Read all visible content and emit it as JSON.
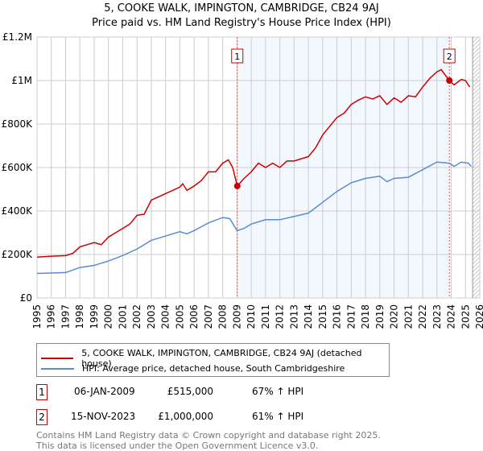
{
  "title": "5, COOKE WALK, IMPINGTON, CAMBRIDGE, CB24 9AJ",
  "subtitle": "Price paid vs. HM Land Registry's House Price Index (HPI)",
  "chart_data": {
    "type": "line",
    "title": "5, COOKE WALK, IMPINGTON, CAMBRIDGE, CB24 9AJ",
    "subtitle": "Price paid vs. HM Land Registry's House Price Index (HPI)",
    "xlim": [
      1995,
      2026
    ],
    "ylim": [
      0,
      1200000
    ],
    "x_ticks": [
      "1995",
      "1996",
      "1997",
      "1998",
      "1999",
      "2000",
      "2001",
      "2002",
      "2003",
      "2004",
      "2005",
      "2006",
      "2007",
      "2008",
      "2009",
      "2010",
      "2011",
      "2012",
      "2013",
      "2014",
      "2015",
      "2016",
      "2017",
      "2018",
      "2019",
      "2020",
      "2021",
      "2022",
      "2023",
      "2024",
      "2025",
      "2026"
    ],
    "y_ticks": [
      {
        "v": 0,
        "label": "£0"
      },
      {
        "v": 200000,
        "label": "£200K"
      },
      {
        "v": 400000,
        "label": "£400K"
      },
      {
        "v": 600000,
        "label": "£600K"
      },
      {
        "v": 800000,
        "label": "£800K"
      },
      {
        "v": 1000000,
        "label": "£1M"
      },
      {
        "v": 1200000,
        "label": "£1.2M"
      }
    ],
    "grid": true,
    "series": [
      {
        "name": "5, COOKE WALK, IMPINGTON, CAMBRIDGE, CB24 9AJ (detached house)",
        "color": "#cc0000",
        "x": [
          1995,
          1996,
          1997,
          1997.5,
          1998,
          1999,
          1999.5,
          2000,
          2001,
          2001.5,
          2002,
          2002.5,
          2003,
          2004,
          2005,
          2005.2,
          2005.5,
          2006,
          2006.5,
          2007,
          2007.5,
          2008,
          2008.4,
          2008.7,
          2009.02,
          2009.5,
          2010,
          2010.5,
          2011,
          2011.5,
          2012,
          2012.5,
          2013,
          2014,
          2014.5,
          2015,
          2015.5,
          2016,
          2016.5,
          2017,
          2017.5,
          2018,
          2018.5,
          2019,
          2019.5,
          2020,
          2020.5,
          2021,
          2021.5,
          2022,
          2022.5,
          2023,
          2023.3,
          2023.87,
          2024.2,
          2024.7,
          2025,
          2025.3
        ],
        "values": [
          188000,
          192000,
          195000,
          205000,
          235000,
          255000,
          245000,
          280000,
          320000,
          340000,
          380000,
          385000,
          450000,
          480000,
          510000,
          525000,
          495000,
          515000,
          540000,
          580000,
          580000,
          620000,
          635000,
          600000,
          515000,
          550000,
          580000,
          620000,
          600000,
          620000,
          600000,
          630000,
          630000,
          650000,
          690000,
          750000,
          790000,
          830000,
          850000,
          890000,
          910000,
          925000,
          915000,
          930000,
          890000,
          920000,
          900000,
          930000,
          925000,
          970000,
          1010000,
          1040000,
          1050000,
          1000000,
          980000,
          1005000,
          1000000,
          970000
        ]
      },
      {
        "name": "HPI: Average price, detached house, South Cambridgeshire",
        "color": "#5b8ccf",
        "x": [
          1995,
          1996,
          1997,
          1998,
          1999,
          2000,
          2001,
          2002,
          2003,
          2004,
          2005,
          2005.5,
          2006,
          2007,
          2008,
          2008.5,
          2009,
          2009.5,
          2010,
          2011,
          2012,
          2013,
          2014,
          2015,
          2016,
          2017,
          2018,
          2019,
          2019.5,
          2020,
          2021,
          2022,
          2023,
          2023.87,
          2024.2,
          2024.7,
          2025.2,
          2025.4
        ],
        "values": [
          113000,
          115000,
          117000,
          140000,
          150000,
          170000,
          195000,
          225000,
          265000,
          285000,
          305000,
          295000,
          310000,
          345000,
          370000,
          365000,
          310000,
          320000,
          340000,
          360000,
          360000,
          375000,
          390000,
          440000,
          490000,
          530000,
          550000,
          560000,
          535000,
          550000,
          555000,
          590000,
          625000,
          620000,
          605000,
          625000,
          620000,
          605000
        ]
      }
    ],
    "shaded_range": [
      2009.02,
      2023.87
    ],
    "forecast_hatch_from": 2025.5,
    "annotations": [
      {
        "label": "1",
        "x": 2009.02,
        "value": 515000
      },
      {
        "label": "2",
        "x": 2023.87,
        "value": 1000000
      }
    ]
  },
  "legend": {
    "items": [
      "5, COOKE WALK, IMPINGTON, CAMBRIDGE, CB24 9AJ (detached house)",
      "HPI: Average price, detached house, South Cambridgeshire"
    ]
  },
  "sales": [
    {
      "num": "1",
      "date": "06-JAN-2009",
      "price": "£515,000",
      "hpi": "67% ↑ HPI"
    },
    {
      "num": "2",
      "date": "15-NOV-2023",
      "price": "£1,000,000",
      "hpi": "61% ↑ HPI"
    }
  ],
  "footer": [
    "Contains HM Land Registry data © Crown copyright and database right 2025.",
    "This data is licensed under the Open Government Licence v3.0."
  ]
}
